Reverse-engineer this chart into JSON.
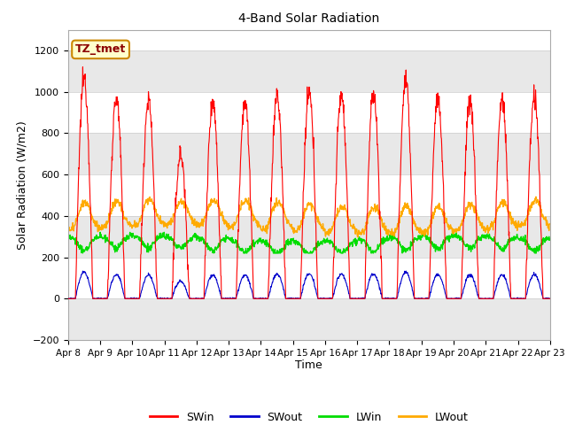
{
  "title": "4-Band Solar Radiation",
  "ylabel": "Solar Radiation (W/m2)",
  "xlabel": "Time",
  "annotation": "TZ_tmet",
  "ylim": [
    -200,
    1300
  ],
  "yticks": [
    -200,
    0,
    200,
    400,
    600,
    800,
    1000,
    1200
  ],
  "xtick_labels": [
    "Apr 8",
    "Apr 9",
    "Apr 10",
    "Apr 11",
    "Apr 12",
    "Apr 13",
    "Apr 14",
    "Apr 15",
    "Apr 16",
    "Apr 17",
    "Apr 18",
    "Apr 19",
    "Apr 20",
    "Apr 21",
    "Apr 22",
    "Apr 23"
  ],
  "colors": {
    "SWin": "#ff0000",
    "SWout": "#0000cc",
    "LWin": "#00dd00",
    "LWout": "#ffaa00"
  },
  "plot_bg": "#ffffff",
  "stripe_color": "#e8e8e8",
  "fig_bg": "#ffffff",
  "swin_peaks": [
    1070,
    970,
    960,
    700,
    960,
    950,
    980,
    990,
    990,
    990,
    1050,
    970,
    960,
    960,
    970
  ],
  "n_days": 15,
  "pts_per_day": 96,
  "lwin_base": 275,
  "lwout_base": 375
}
